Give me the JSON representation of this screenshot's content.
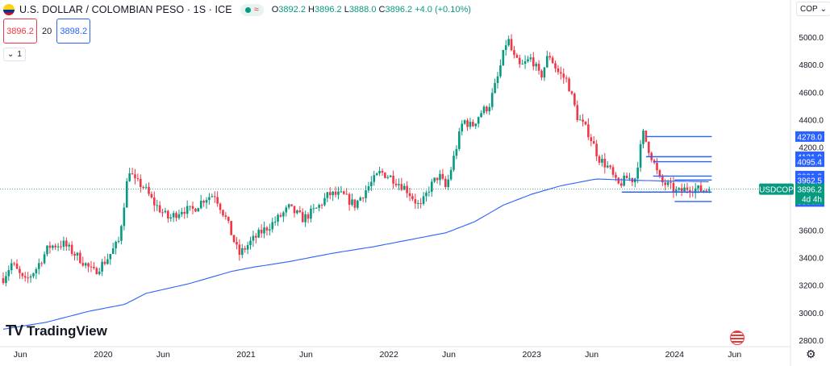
{
  "header": {
    "title": "U.S. DOLLAR / COLOMBIAN PESO · 1S · ICE",
    "ohlc": [
      {
        "k": "O",
        "v": "3892.2"
      },
      {
        "k": "H",
        "v": "3896.2"
      },
      {
        "k": "L",
        "v": "3888.0"
      },
      {
        "k": "C",
        "v": "3896.2"
      }
    ],
    "change": "+4.0 (+0.10%)",
    "sell_price": "3896.2",
    "spread": "20",
    "buy_price": "3898.2",
    "collapse_count": "1",
    "currency_button": "COP"
  },
  "brand": {
    "name": "TradingView",
    "logo_glyph": "TV"
  },
  "colors": {
    "up": "#089981",
    "down": "#f23645",
    "ma": "#2962ff",
    "drawing": "#2962ff"
  },
  "icons": [
    "flag-icon",
    "market-status-icon",
    "chevron-down-icon",
    "settings-icon",
    "us-flag-icon"
  ],
  "chart_data": {
    "type": "candlestick",
    "timeframe": "1S",
    "symbol": "USDCOP",
    "ylim": [
      2800,
      5000
    ],
    "yticks": [
      2800,
      3000,
      3200,
      3400,
      3600,
      3800,
      4000,
      4200,
      4400,
      4600,
      4800,
      5000
    ],
    "xticks": [
      {
        "label": "Jun",
        "t": 2019.42
      },
      {
        "label": "2020",
        "t": 2020.0
      },
      {
        "label": "Jun",
        "t": 2020.42
      },
      {
        "label": "2021",
        "t": 2021.0
      },
      {
        "label": "Jun",
        "t": 2021.42
      },
      {
        "label": "2022",
        "t": 2022.0
      },
      {
        "label": "Jun",
        "t": 2022.42
      },
      {
        "label": "2023",
        "t": 2023.0
      },
      {
        "label": "Jun",
        "t": 2023.42
      },
      {
        "label": "2024",
        "t": 2024.0
      },
      {
        "label": "Jun",
        "t": 2024.42
      }
    ],
    "anchors": [
      {
        "t": 2019.3,
        "v": 3250
      },
      {
        "t": 2019.36,
        "v": 3360
      },
      {
        "t": 2019.45,
        "v": 3220
      },
      {
        "t": 2019.53,
        "v": 3320
      },
      {
        "t": 2019.62,
        "v": 3480
      },
      {
        "t": 2019.72,
        "v": 3500
      },
      {
        "t": 2019.85,
        "v": 3380
      },
      {
        "t": 2019.93,
        "v": 3290
      },
      {
        "t": 2020.02,
        "v": 3380
      },
      {
        "t": 2020.11,
        "v": 3520
      },
      {
        "t": 2020.18,
        "v": 4050
      },
      {
        "t": 2020.22,
        "v": 3950
      },
      {
        "t": 2020.28,
        "v": 3920
      },
      {
        "t": 2020.35,
        "v": 3800
      },
      {
        "t": 2020.46,
        "v": 3680
      },
      {
        "t": 2020.55,
        "v": 3750
      },
      {
        "t": 2020.62,
        "v": 3740
      },
      {
        "t": 2020.71,
        "v": 3830
      },
      {
        "t": 2020.78,
        "v": 3860
      },
      {
        "t": 2020.86,
        "v": 3680
      },
      {
        "t": 2020.95,
        "v": 3420
      },
      {
        "t": 2021.02,
        "v": 3500
      },
      {
        "t": 2021.1,
        "v": 3580
      },
      {
        "t": 2021.2,
        "v": 3660
      },
      {
        "t": 2021.3,
        "v": 3760
      },
      {
        "t": 2021.4,
        "v": 3680
      },
      {
        "t": 2021.5,
        "v": 3760
      },
      {
        "t": 2021.58,
        "v": 3860
      },
      {
        "t": 2021.68,
        "v": 3850
      },
      {
        "t": 2021.76,
        "v": 3780
      },
      {
        "t": 2021.86,
        "v": 3920
      },
      {
        "t": 2021.94,
        "v": 4020
      },
      {
        "t": 2022.02,
        "v": 3980
      },
      {
        "t": 2022.12,
        "v": 3900
      },
      {
        "t": 2022.22,
        "v": 3760
      },
      {
        "t": 2022.28,
        "v": 3900
      },
      {
        "t": 2022.35,
        "v": 4000
      },
      {
        "t": 2022.4,
        "v": 3900
      },
      {
        "t": 2022.46,
        "v": 4150
      },
      {
        "t": 2022.52,
        "v": 4400
      },
      {
        "t": 2022.58,
        "v": 4350
      },
      {
        "t": 2022.64,
        "v": 4450
      },
      {
        "t": 2022.7,
        "v": 4500
      },
      {
        "t": 2022.76,
        "v": 4700
      },
      {
        "t": 2022.83,
        "v": 5000
      },
      {
        "t": 2022.87,
        "v": 4860
      },
      {
        "t": 2022.92,
        "v": 4780
      },
      {
        "t": 2023.0,
        "v": 4850
      },
      {
        "t": 2023.06,
        "v": 4700
      },
      {
        "t": 2023.12,
        "v": 4880
      },
      {
        "t": 2023.18,
        "v": 4750
      },
      {
        "t": 2023.25,
        "v": 4680
      },
      {
        "t": 2023.32,
        "v": 4420
      },
      {
        "t": 2023.4,
        "v": 4300
      },
      {
        "t": 2023.47,
        "v": 4120
      },
      {
        "t": 2023.54,
        "v": 4050
      },
      {
        "t": 2023.6,
        "v": 3920
      },
      {
        "t": 2023.67,
        "v": 3980
      },
      {
        "t": 2023.72,
        "v": 3960
      },
      {
        "t": 2023.78,
        "v": 4300
      },
      {
        "t": 2023.85,
        "v": 4100
      },
      {
        "t": 2023.9,
        "v": 3950
      },
      {
        "t": 2023.96,
        "v": 3920
      },
      {
        "t": 2024.02,
        "v": 3870
      },
      {
        "t": 2024.1,
        "v": 3910
      },
      {
        "t": 2024.18,
        "v": 3890
      },
      {
        "t": 2024.24,
        "v": 3896.2
      }
    ],
    "moving_average": [
      {
        "t": 2019.3,
        "v": 2880
      },
      {
        "t": 2019.6,
        "v": 2930
      },
      {
        "t": 2019.9,
        "v": 3010
      },
      {
        "t": 2020.15,
        "v": 3060
      },
      {
        "t": 2020.3,
        "v": 3140
      },
      {
        "t": 2020.6,
        "v": 3210
      },
      {
        "t": 2020.9,
        "v": 3300
      },
      {
        "t": 2021.05,
        "v": 3330
      },
      {
        "t": 2021.3,
        "v": 3370
      },
      {
        "t": 2021.6,
        "v": 3430
      },
      {
        "t": 2021.9,
        "v": 3480
      },
      {
        "t": 2022.2,
        "v": 3540
      },
      {
        "t": 2022.4,
        "v": 3580
      },
      {
        "t": 2022.6,
        "v": 3660
      },
      {
        "t": 2022.8,
        "v": 3780
      },
      {
        "t": 2023.0,
        "v": 3860
      },
      {
        "t": 2023.2,
        "v": 3920
      },
      {
        "t": 2023.45,
        "v": 3970
      },
      {
        "t": 2023.6,
        "v": 3965
      },
      {
        "t": 2023.75,
        "v": 3960
      },
      {
        "t": 2023.95,
        "v": 3955
      },
      {
        "t": 2024.24,
        "v": 3950
      }
    ],
    "price_lines": [
      {
        "label": "4278.0",
        "value": 4278.0,
        "t_start": 2023.8
      },
      {
        "label": "4131.9",
        "value": 4131.9,
        "t_start": 2023.8
      },
      {
        "label": "4095.4",
        "value": 4095.4,
        "t_start": 2023.85
      },
      {
        "label": "3991.3",
        "value": 3991.3,
        "t_start": 2023.85
      },
      {
        "label": "3962.5",
        "value": 3962.5,
        "t_start": 2024.0
      },
      {
        "label": "3875.1",
        "value": 3875.1,
        "t_start": 2023.63
      },
      {
        "label": "3806.7",
        "value": 3806.7,
        "t_start": 2024.0
      }
    ],
    "current": {
      "symbol": "USDCOP",
      "price": "3896.2",
      "countdown": "4d 4h",
      "value": 3896.2
    }
  }
}
